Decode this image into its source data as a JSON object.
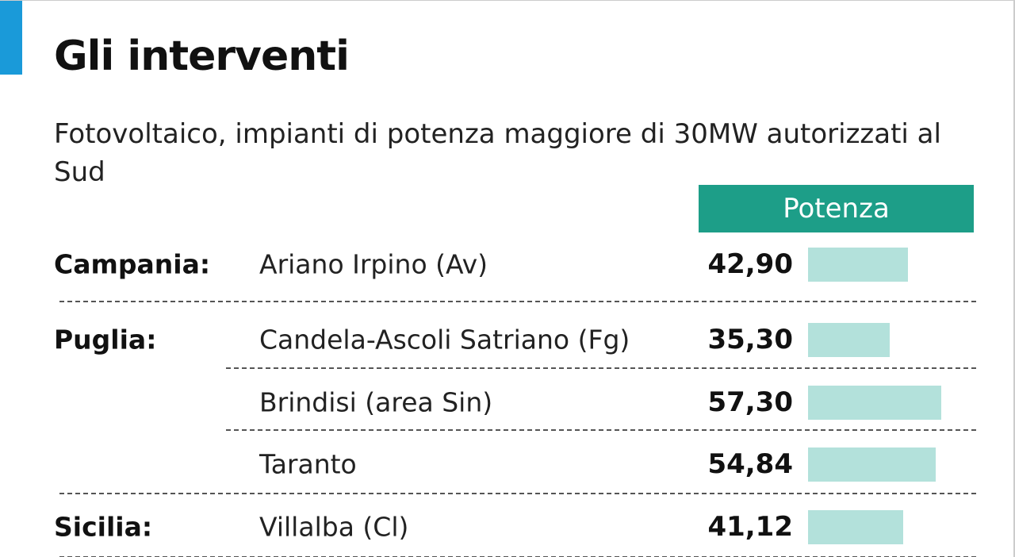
{
  "chart_data": {
    "type": "bar",
    "title": "Gli interventi",
    "subtitle": "Fotovoltaico, impianti di potenza maggiore di 30MW autorizzati al Sud",
    "value_header": "Potenza",
    "groups": [
      "Campania:",
      "Puglia:",
      null,
      null,
      "Sicilia:"
    ],
    "categories": [
      "Ariano Irpino (Av)",
      "Candela-Ascoli Satriano (Fg)",
      "Brindisi (area Sin)",
      "Taranto",
      "Villalba (Cl)"
    ],
    "values": [
      42.9,
      35.3,
      57.3,
      54.84,
      41.12
    ],
    "value_labels": [
      "42,90",
      "35,30",
      "57,30",
      "54,84",
      "41,12"
    ],
    "color": "#b3e1db",
    "header_color": "#1d9e88"
  }
}
